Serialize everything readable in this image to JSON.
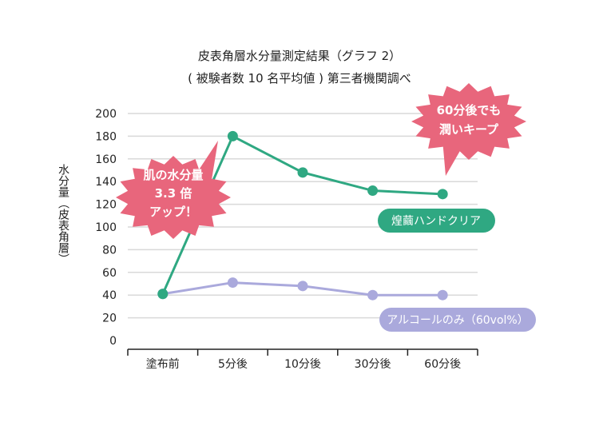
{
  "chart_data": {
    "type": "line",
    "title_line1": "皮表角層水分量測定結果（グラフ 2）",
    "title_line2": "( 被験者数 10 名平均値 ) 第三者機関調べ",
    "ylabel": "水分量（皮表角層）",
    "categories": [
      "塗布前",
      "5分後",
      "10分後",
      "30分後",
      "60分後"
    ],
    "ylim": [
      0,
      200
    ],
    "yticks": [
      "200",
      "180",
      "160",
      "140",
      "120",
      "100",
      "80",
      "60",
      "40",
      "20",
      "0"
    ],
    "grid": true,
    "series": [
      {
        "name": "煌繭ハンドクリア",
        "values": [
          41,
          180,
          148,
          132,
          129
        ],
        "color": "#2fa882"
      },
      {
        "name": "アルコールのみ（60vol%）",
        "values": [
          41,
          51,
          48,
          40,
          40
        ],
        "color": "#aaa9dc"
      }
    ],
    "callouts": [
      {
        "lines": [
          "肌の水分量",
          "3.3 倍",
          "アップ！"
        ],
        "color": "#e8667c"
      },
      {
        "lines": [
          "60分後でも",
          "潤いキープ"
        ],
        "color": "#e8667c"
      }
    ]
  }
}
